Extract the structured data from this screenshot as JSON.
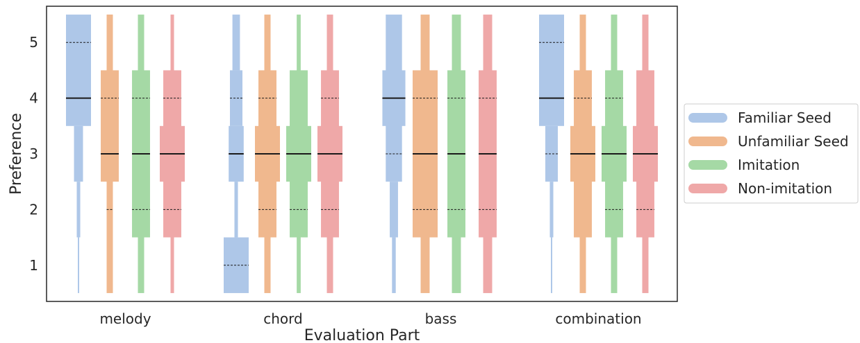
{
  "chart_data": {
    "type": "boxen",
    "xlabel": "Evaluation Part",
    "ylabel": "Preference",
    "ylim": [
      0.35,
      5.65
    ],
    "yticks": [
      1,
      2,
      3,
      4,
      5
    ],
    "grid": false,
    "legend_position": "right",
    "categories": [
      "melody",
      "chord",
      "bass",
      "combination"
    ],
    "series": [
      {
        "name": "Familiar Seed",
        "color": "#aec7e8"
      },
      {
        "name": "Unfamiliar Seed",
        "color": "#f0b88e"
      },
      {
        "name": "Imitation",
        "color": "#a5d9a5"
      },
      {
        "name": "Non-imitation",
        "color": "#efa8a8"
      }
    ],
    "boxes": [
      [
        {
          "median": 4,
          "boxes": [
            {
              "lo": 3.5,
              "hi": 5.5,
              "w": 1.0
            },
            {
              "lo": 2.5,
              "hi": 3.5,
              "w": 0.36
            },
            {
              "lo": 1.5,
              "hi": 2.5,
              "w": 0.14
            },
            {
              "lo": 0.5,
              "hi": 1.5,
              "w": 0.04
            }
          ],
          "dashed": [
            5
          ]
        },
        {
          "median": 3,
          "boxes": [
            {
              "lo": 2.5,
              "hi": 4.5,
              "w": 0.72
            },
            {
              "lo": 1.5,
              "hi": 5.5,
              "w": 0.25
            },
            {
              "lo": 0.5,
              "hi": 5.5,
              "w": 0.25
            }
          ],
          "dashed": [
            4,
            2
          ]
        },
        {
          "median": 3,
          "boxes": [
            {
              "lo": 1.5,
              "hi": 4.5,
              "w": 0.72
            },
            {
              "lo": 0.5,
              "hi": 5.5,
              "w": 0.25
            }
          ],
          "dashed": [
            4,
            2
          ]
        },
        {
          "median": 3,
          "boxes": [
            {
              "lo": 2.5,
              "hi": 3.5,
              "w": 1.0
            },
            {
              "lo": 1.5,
              "hi": 4.5,
              "w": 0.72
            },
            {
              "lo": 0.5,
              "hi": 5.5,
              "w": 0.14
            }
          ],
          "dashed": [
            4,
            2
          ]
        }
      ],
      [
        {
          "median": 3,
          "boxes": [
            {
              "lo": 0.5,
              "hi": 1.5,
              "w": 1.0
            },
            {
              "lo": 1.5,
              "hi": 2.5,
              "w": 0.14
            },
            {
              "lo": 2.5,
              "hi": 3.5,
              "w": 0.6
            },
            {
              "lo": 3.5,
              "hi": 4.5,
              "w": 0.5
            },
            {
              "lo": 4.5,
              "hi": 5.5,
              "w": 0.3
            }
          ],
          "dashed": [
            1,
            4
          ]
        },
        {
          "median": 3,
          "boxes": [
            {
              "lo": 2.5,
              "hi": 3.5,
              "w": 1.0
            },
            {
              "lo": 1.5,
              "hi": 4.5,
              "w": 0.72
            },
            {
              "lo": 0.5,
              "hi": 5.5,
              "w": 0.25
            }
          ],
          "dashed": [
            4,
            2
          ]
        },
        {
          "median": 3,
          "boxes": [
            {
              "lo": 2.5,
              "hi": 3.5,
              "w": 1.0
            },
            {
              "lo": 1.5,
              "hi": 4.5,
              "w": 0.72
            },
            {
              "lo": 0.5,
              "hi": 5.5,
              "w": 0.16
            }
          ],
          "dashed": [
            2
          ]
        },
        {
          "median": 3,
          "boxes": [
            {
              "lo": 2.5,
              "hi": 3.5,
              "w": 1.0
            },
            {
              "lo": 1.5,
              "hi": 4.5,
              "w": 0.72
            },
            {
              "lo": 0.5,
              "hi": 5.5,
              "w": 0.25
            }
          ],
          "dashed": [
            4,
            2
          ]
        }
      ],
      [
        {
          "median": 4,
          "boxes": [
            {
              "lo": 3.5,
              "hi": 4.5,
              "w": 0.92
            },
            {
              "lo": 2.5,
              "hi": 5.5,
              "w": 0.65
            },
            {
              "lo": 1.5,
              "hi": 2.5,
              "w": 0.33
            },
            {
              "lo": 0.5,
              "hi": 1.5,
              "w": 0.15
            }
          ],
          "dashed": [
            3
          ]
        },
        {
          "median": 3,
          "boxes": [
            {
              "lo": 1.5,
              "hi": 4.5,
              "w": 1.0
            },
            {
              "lo": 0.5,
              "hi": 5.5,
              "w": 0.36
            }
          ],
          "dashed": [
            4,
            2
          ]
        },
        {
          "median": 3,
          "boxes": [
            {
              "lo": 1.5,
              "hi": 4.5,
              "w": 0.72
            },
            {
              "lo": 0.5,
              "hi": 5.5,
              "w": 0.36
            }
          ],
          "dashed": [
            4,
            2
          ]
        },
        {
          "median": 3,
          "boxes": [
            {
              "lo": 1.5,
              "hi": 4.5,
              "w": 0.72
            },
            {
              "lo": 0.5,
              "hi": 5.5,
              "w": 0.36
            }
          ],
          "dashed": [
            4,
            2
          ]
        }
      ],
      [
        {
          "median": 4,
          "boxes": [
            {
              "lo": 3.5,
              "hi": 5.5,
              "w": 1.0
            },
            {
              "lo": 2.5,
              "hi": 3.5,
              "w": 0.5
            },
            {
              "lo": 1.5,
              "hi": 2.5,
              "w": 0.14
            },
            {
              "lo": 0.5,
              "hi": 1.5,
              "w": 0.04
            }
          ],
          "dashed": [
            5,
            3
          ]
        },
        {
          "median": 3,
          "boxes": [
            {
              "lo": 2.5,
              "hi": 3.5,
              "w": 1.0
            },
            {
              "lo": 1.5,
              "hi": 4.5,
              "w": 0.72
            },
            {
              "lo": 0.5,
              "hi": 5.5,
              "w": 0.25
            }
          ],
          "dashed": [
            4
          ]
        },
        {
          "median": 3,
          "boxes": [
            {
              "lo": 2.5,
              "hi": 3.5,
              "w": 1.0
            },
            {
              "lo": 1.5,
              "hi": 4.5,
              "w": 0.72
            },
            {
              "lo": 0.5,
              "hi": 5.5,
              "w": 0.25
            }
          ],
          "dashed": [
            4,
            2
          ]
        },
        {
          "median": 3,
          "boxes": [
            {
              "lo": 2.5,
              "hi": 3.5,
              "w": 1.0
            },
            {
              "lo": 1.5,
              "hi": 4.5,
              "w": 0.72
            },
            {
              "lo": 0.5,
              "hi": 5.5,
              "w": 0.25
            }
          ],
          "dashed": [
            2
          ]
        }
      ]
    ]
  }
}
